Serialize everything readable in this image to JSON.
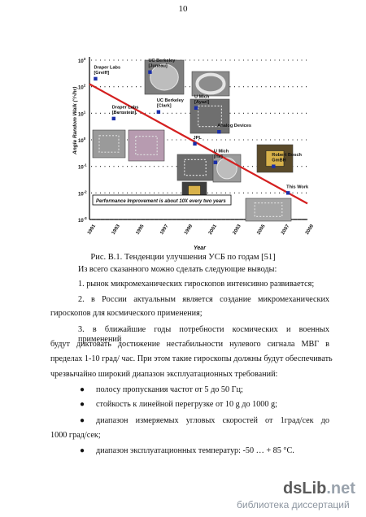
{
  "page_number": "10",
  "chart_data": {
    "type": "scatter",
    "ylabel": "Angle Random Walk (°/√hr)",
    "xlabel": "Year",
    "x_ticks": [
      "1991",
      "1993",
      "1995",
      "1997",
      "1999",
      "2001",
      "2003",
      "2005",
      "2007",
      "2009"
    ],
    "y_ticks": [
      {
        "base": "10",
        "exp": "3"
      },
      {
        "base": "10",
        "exp": "2"
      },
      {
        "base": "10",
        "exp": "1"
      },
      {
        "base": "10",
        "exp": "0"
      },
      {
        "base": "10",
        "exp": "-1"
      },
      {
        "base": "10",
        "exp": "-2"
      },
      {
        "base": "10",
        "exp": "-3"
      }
    ],
    "xlim": [
      1991,
      2009
    ],
    "ylim_log10": [
      -3,
      3
    ],
    "grid": "dotted horizontal",
    "points": [
      {
        "label": "Draper Labs\n[Greiff]",
        "x": 1991.5,
        "y_log10": 2.3
      },
      {
        "label": "UC Berkeley\n[Juneau]",
        "x": 1996.0,
        "y_log10": 2.55
      },
      {
        "label": "U Mich\n[Ayazi]",
        "x": 1999.8,
        "y_log10": 1.2
      },
      {
        "label": "Draper Labs\n[Bernstein]",
        "x": 1993.0,
        "y_log10": 0.8
      },
      {
        "label": "UC Berkeley\n[Clark]",
        "x": 1996.7,
        "y_log10": 1.05
      },
      {
        "label": "Analog Devices",
        "x": 2001.7,
        "y_log10": 0.3
      },
      {
        "label": "JPL",
        "x": 1999.7,
        "y_log10": -0.15
      },
      {
        "label": "U Mich\n[He]",
        "x": 2001.4,
        "y_log10": -0.85
      },
      {
        "label": "Robert Bosch\nGmBH",
        "x": 2006.2,
        "y_log10": -1.0
      },
      {
        "label": "This Work",
        "x": 2007.4,
        "y_log10": -2.0
      }
    ],
    "trend_line": {
      "from": [
        1991,
        2.1
      ],
      "to": [
        2009,
        -2.4
      ],
      "color": "#d42020"
    },
    "annotation": "Performance Improvement is about 10X every two years"
  },
  "caption": "Рис. В.1. Тенденции улучшения УСБ по годам [51]",
  "body": {
    "intro": "Из всего сказанного можно сделать следующие выводы:",
    "item1": "1. рынок микромеханических гироскопов интенсивно развивается;",
    "item2_line1": "2. в России актуальным является создание микромеханических",
    "item2_line2": "гироскопов для космического применения;",
    "item3_line1": "3. в ближайшие годы потребности космических и военных применений",
    "item3_line2": "будут диктовать достижение нестабильности нулевого сигнала МВГ в",
    "item3_line3": "пределах 1-10 град/ час. При этом такие гироскопы должны будут обеспечивать",
    "item3_line4": "чрезвычайно широкий диапазон эксплуатационных требований:",
    "bullet1": "полосу пропускания частот от 5 до 50 Гц;",
    "bullet2": "стойкость к линейной перегрузке от 10 g до 1000 g;",
    "bullet3_line1": "диапазон измеряемых угловых скоростей от 1град/сек до",
    "bullet3_line2": "1000 град/сек;",
    "bullet4": "диапазон эксплуатационных температур: -50 … + 85 °С."
  },
  "watermark": {
    "logo_main": "dsLib",
    "logo_ext": ".net",
    "subtitle": "библиотека диссертаций"
  }
}
